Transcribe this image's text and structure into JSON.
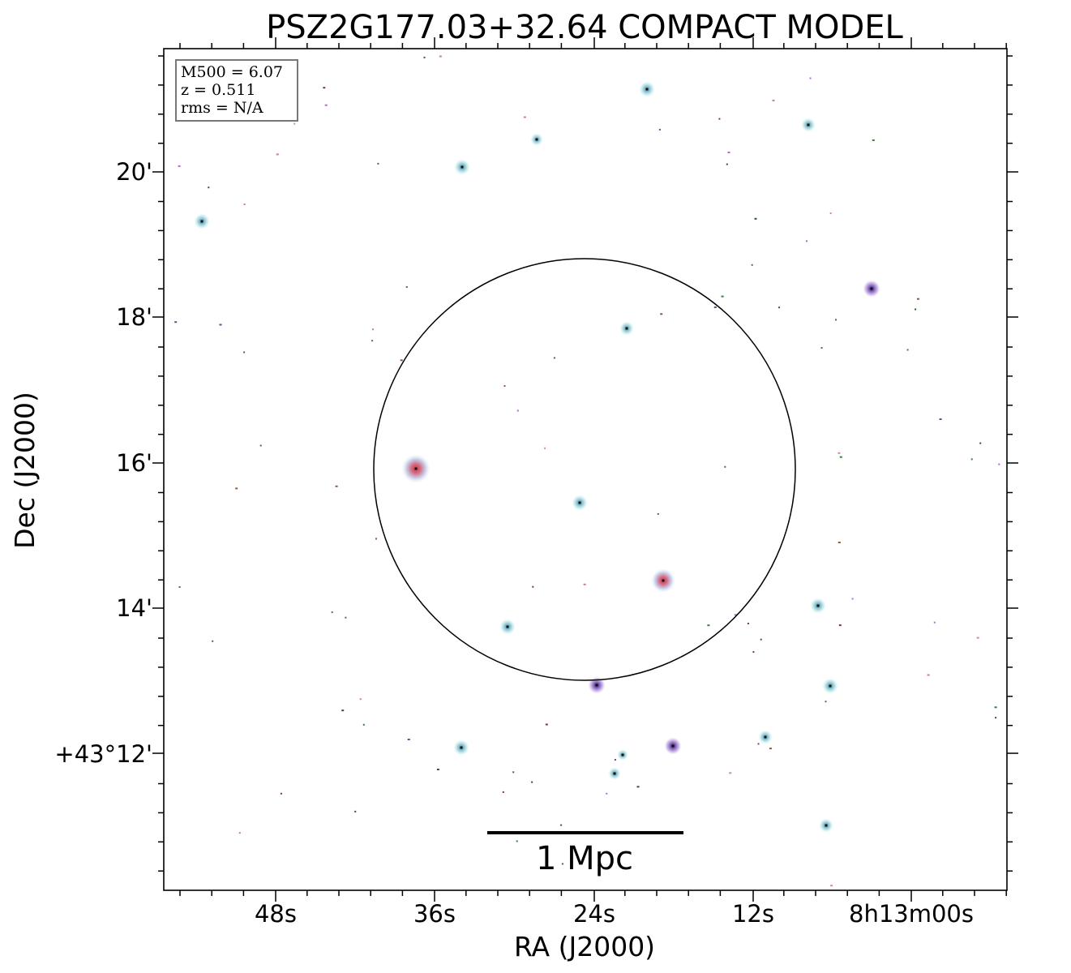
{
  "title": "PSZ2G177.03+32.64 COMPACT MODEL",
  "xlabel": "RA (J2000)",
  "ylabel": "Dec (J2000)",
  "x_ticks": [
    "48s",
    "36s",
    "24s",
    "12s",
    "8h13m00s"
  ],
  "y_ticks": [
    "20'",
    "18'",
    "16'",
    "14'",
    "+43°12'"
  ],
  "info_box": {
    "line1": "M500 = 6.07",
    "line2": "z = 0.511",
    "line3": "rms = N/A"
  },
  "scale_bar": {
    "label": "1 Mpc"
  },
  "colors": {
    "cyan_halo": "#bfe6ea",
    "magenta_halo": "#c9a6dd",
    "red_core": "#d96a7a",
    "dark_core": "#1a1a3a"
  }
}
